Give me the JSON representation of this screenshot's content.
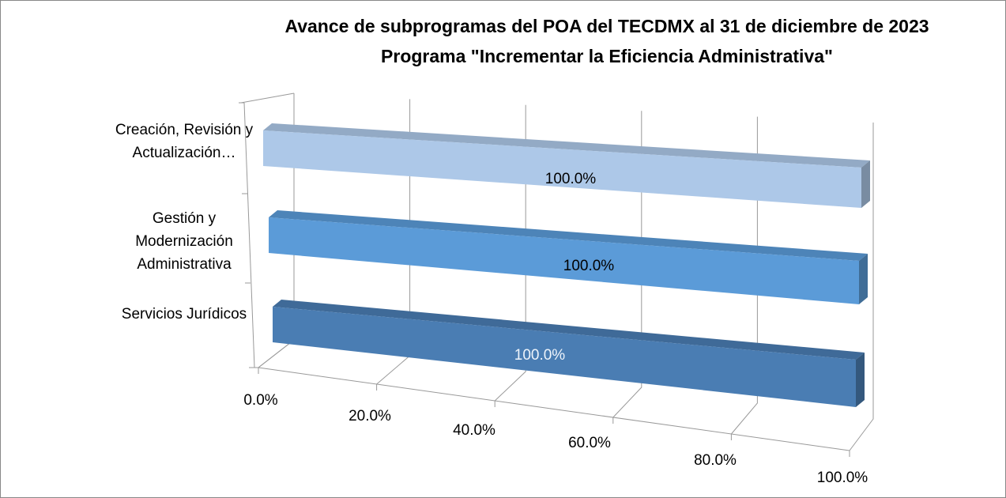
{
  "chart_data": {
    "type": "bar3d_horizontal",
    "title": "Avance de subprogramas del POA del TECDMX al 31 de diciembre de 2023",
    "subtitle": "Programa \"Incrementar la Eficiencia Administrativa\"",
    "categories": [
      "Creación, Revisión y Actualización…",
      "Gestión y Modernización Administrativa",
      "Servicios Jurídicos"
    ],
    "values": [
      100,
      100,
      100
    ],
    "value_labels": [
      "100.0%",
      "100.0%",
      "100.0%"
    ],
    "colors": [
      "#adc8e8",
      "#5b9bd8",
      "#4a7db3"
    ],
    "xlim": [
      0,
      100
    ],
    "xticks": [
      {
        "value": 0,
        "label": "0.0%"
      },
      {
        "value": 20,
        "label": "20.0%"
      },
      {
        "value": 40,
        "label": "40.0%"
      },
      {
        "value": 60,
        "label": "60.0%"
      },
      {
        "value": 80,
        "label": "80.0%"
      },
      {
        "value": 100,
        "label": "100.0%"
      }
    ],
    "grid": true
  }
}
